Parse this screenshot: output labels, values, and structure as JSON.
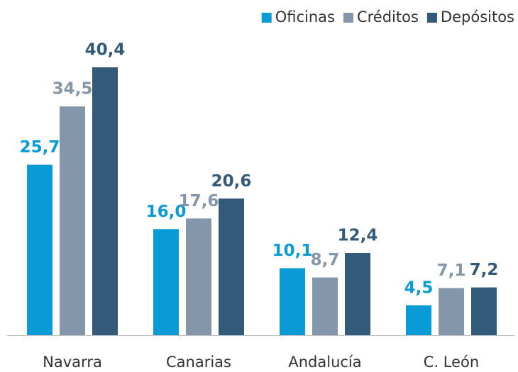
{
  "chart_data": {
    "type": "bar",
    "categories": [
      "Navarra",
      "Canarias",
      "Andalucía",
      "C. León"
    ],
    "series": [
      {
        "name": "Oficinas",
        "color": "#0a9ad6",
        "values": [
          25.7,
          16.0,
          10.1,
          4.5
        ],
        "value_labels": [
          "25,7",
          "16,0",
          "10,1",
          "4,5"
        ]
      },
      {
        "name": "Créditos",
        "color": "#8497aa",
        "values": [
          34.5,
          17.6,
          8.7,
          7.1
        ],
        "value_labels": [
          "34,5",
          "17,6",
          "8,7",
          "7,1"
        ]
      },
      {
        "name": "Depósitos",
        "color": "#345a7a",
        "values": [
          40.4,
          20.6,
          12.4,
          7.2
        ],
        "value_labels": [
          "40,4",
          "20,6",
          "12,4",
          "7,2"
        ]
      }
    ],
    "legend": "top-right"
  }
}
